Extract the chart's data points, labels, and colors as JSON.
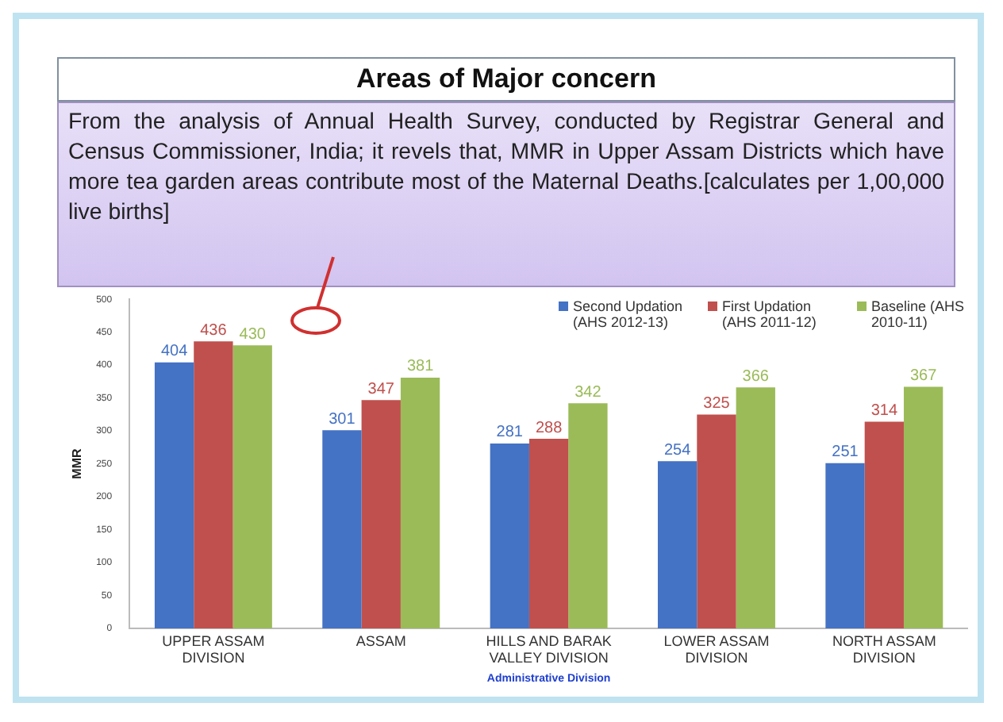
{
  "chart_data": {
    "type": "bar",
    "title": "Areas of Major concern",
    "subtitle": "From the analysis of Annual Health Survey, conducted by Registrar General and Census Commissioner, India; it revels that, MMR in Upper Assam Districts which have more tea garden areas contribute most of the Maternal Deaths.[calculates per 1,00,000 live births]",
    "xlabel": "Administrative Division",
    "ylabel": "MMR",
    "categories": [
      "UPPER ASSAM DIVISION",
      "ASSAM",
      "HILLS AND BARAK VALLEY DIVISION",
      "LOWER ASSAM DIVISION",
      "NORTH ASSAM DIVISION"
    ],
    "series": [
      {
        "name": "Second Updation (AHS 2012-13)",
        "color": "#4472c4",
        "values": [
          404,
          301,
          281,
          254,
          251
        ]
      },
      {
        "name": "First Updation (AHS 2011-12)",
        "color": "#c0504d",
        "values": [
          436,
          347,
          288,
          325,
          314
        ]
      },
      {
        "name": "Baseline (AHS 2010-11)",
        "color": "#9bbb59",
        "values": [
          430,
          381,
          342,
          366,
          367
        ]
      }
    ],
    "ylim": [
      0,
      500
    ],
    "yticks": [
      0,
      50,
      100,
      150,
      200,
      250,
      300,
      350,
      400,
      450,
      500
    ],
    "grid": false,
    "legend": "top right",
    "data_labels": true
  }
}
